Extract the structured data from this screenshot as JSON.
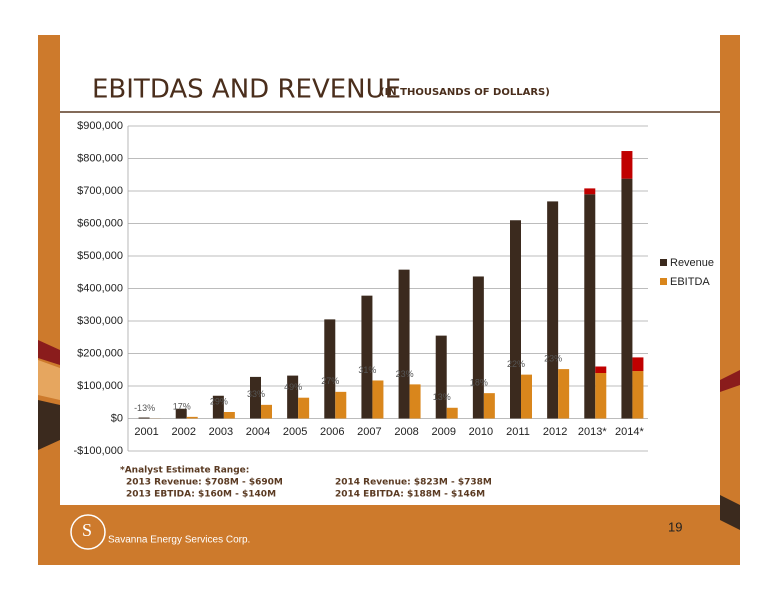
{
  "chart_data": {
    "type": "bar",
    "title": "EBITDAS AND REVENUE",
    "subtitle": "(IN THOUSANDS OF DOLLARS)",
    "categories": [
      "2001",
      "2002",
      "2003",
      "2004",
      "2005",
      "2006",
      "2007",
      "2008",
      "2009",
      "2010",
      "2011",
      "2012",
      "2013*",
      "2014*"
    ],
    "series": [
      {
        "name": "Revenue",
        "color": "#3b2a1e",
        "values": [
          3000,
          30000,
          70000,
          128000,
          132000,
          305000,
          378000,
          458000,
          255000,
          437000,
          610000,
          668000,
          690000,
          738000
        ],
        "estimate_range": [
          null,
          null,
          null,
          null,
          null,
          null,
          null,
          null,
          null,
          null,
          null,
          null,
          18000,
          85000
        ]
      },
      {
        "name": "EBITDA",
        "color": "#d9861c",
        "values": [
          -400,
          5000,
          20000,
          42000,
          64000,
          82000,
          117000,
          105000,
          33000,
          78000,
          135000,
          152000,
          140000,
          146000
        ],
        "estimate_range": [
          null,
          null,
          null,
          null,
          null,
          null,
          null,
          null,
          null,
          null,
          null,
          null,
          20000,
          42000
        ]
      }
    ],
    "estimate_color": "#c00000",
    "margin_labels": [
      "-13%",
      "17%",
      "29%",
      "33%",
      "49%",
      "27%",
      "31%",
      "23%",
      "13%",
      "18%",
      "22%",
      "23%",
      null,
      null
    ],
    "ylim": [
      -100000,
      900000
    ],
    "yticks": [
      {
        "value": -100000,
        "label": "-$100,000"
      },
      {
        "value": 0,
        "label": "$0"
      },
      {
        "value": 100000,
        "label": "$100,000"
      },
      {
        "value": 200000,
        "label": "$200,000"
      },
      {
        "value": 300000,
        "label": "$300,000"
      },
      {
        "value": 400000,
        "label": "$400,000"
      },
      {
        "value": 500000,
        "label": "$500,000"
      },
      {
        "value": 600000,
        "label": "$600,000"
      },
      {
        "value": 700000,
        "label": "$700,000"
      },
      {
        "value": 800000,
        "label": "$800,000"
      },
      {
        "value": 900000,
        "label": "$900,000"
      }
    ],
    "grid": true,
    "legend": "right"
  },
  "footnote": {
    "heading": "*Analyst Estimate Range:",
    "lines": [
      "2013 Revenue: $708M - $690M",
      "2014 Revenue: $823M - $738M",
      "2013 EBTIDA: $160M - $140M",
      "2014 EBITDA: $188M - $146M"
    ]
  },
  "page_number": "19",
  "company": "Savanna Energy Services Corp."
}
